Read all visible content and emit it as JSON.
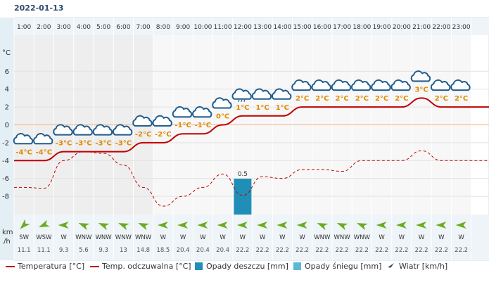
{
  "date": "2022-01-13",
  "colors": {
    "temp": "#c00000",
    "feels": "#c00000",
    "rain": "#1f8fb7",
    "snow": "#5bb8d6",
    "wind": "#6aab1f",
    "night_bg": "#eeeeee",
    "day_bg": "#ffffff"
  },
  "axis": {
    "temp_unit": "°C",
    "wind_unit_top": "km",
    "wind_unit_bottom": "/h",
    "y_ticks": [
      6,
      4,
      2,
      0,
      -2,
      -4,
      -6,
      -8
    ],
    "y_range": [
      -9.5,
      8
    ]
  },
  "legend": {
    "temp": "Temperatura [°C]",
    "feels": "Temp. odczuwalna [°C]",
    "rain": "Opady deszczu [mm]",
    "snow": "Opady śniegu [mm]",
    "wind": "Wiatr [km/h]"
  },
  "chart_data": {
    "type": "line",
    "x": [
      "1:00",
      "2:00",
      "3:00",
      "4:00",
      "5:00",
      "6:00",
      "7:00",
      "8:00",
      "9:00",
      "10:00",
      "11:00",
      "12:00",
      "13:00",
      "14:00",
      "15:00",
      "16:00",
      "17:00",
      "18:00",
      "19:00",
      "20:00",
      "21:00",
      "22:00",
      "23:00"
    ],
    "series": [
      {
        "name": "Temperatura [°C]",
        "values": [
          -4,
          -4,
          -3,
          -3,
          -3,
          -3,
          -2,
          -2,
          -1,
          -1,
          0,
          1,
          1,
          1,
          2,
          2,
          2,
          2,
          2,
          2,
          3,
          2,
          2
        ]
      },
      {
        "name": "Temp. odczuwalna [°C]",
        "values": [
          -7,
          -7.1,
          -4,
          -3,
          -3.2,
          -4.5,
          -7,
          -9.1,
          -8,
          -7,
          -5.5,
          -7.9,
          -5.8,
          -6,
          -5,
          -5,
          -5.2,
          -4,
          -4,
          -4,
          -2.9,
          -4,
          -4
        ]
      },
      {
        "name": "Opady deszczu [mm]",
        "values": [
          0,
          0,
          0,
          0,
          0,
          0,
          0,
          0,
          0,
          0,
          0,
          0.5,
          0,
          0,
          0,
          0,
          0,
          0,
          0,
          0,
          0,
          0,
          0
        ]
      }
    ],
    "temp_labels": [
      "-4°C",
      "-4°C",
      "-3°C",
      "-3°C",
      "-3°C",
      "-3°C",
      "-2°C",
      "-2°C",
      "-1°C",
      "-1°C",
      "0°C",
      "1°C",
      "1°C",
      "1°C",
      "2°C",
      "2°C",
      "2°C",
      "2°C",
      "2°C",
      "2°C",
      "3°C",
      "2°C",
      "2°C"
    ],
    "rain_labels": {
      "11": "0.5"
    },
    "wind_dir": [
      "SW",
      "WSW",
      "W",
      "WNW",
      "WNW",
      "WNW",
      "WNW",
      "W",
      "W",
      "W",
      "W",
      "W",
      "W",
      "W",
      "W",
      "WNW",
      "WNW",
      "WNW",
      "W",
      "W",
      "W",
      "W",
      "W"
    ],
    "wind_speed": [
      "11.1",
      "11.1",
      "9.3",
      "5.6",
      "9.3",
      "13",
      "14.8",
      "18.5",
      "20.4",
      "20.4",
      "20.4",
      "22.2",
      "22.2",
      "22.2",
      "22.2",
      "22.2",
      "22.2",
      "22.2",
      "22.2",
      "22.2",
      "22.2",
      "22.2",
      "22.2"
    ],
    "wind_deg": [
      225,
      247,
      270,
      292,
      292,
      292,
      292,
      270,
      270,
      270,
      270,
      270,
      270,
      270,
      270,
      292,
      292,
      292,
      270,
      270,
      270,
      270,
      270
    ],
    "icons": [
      "cloud",
      "cloud",
      "cloud",
      "cloud",
      "cloud",
      "cloud",
      "cloud",
      "cloud",
      "cloud",
      "cloud",
      "cloud",
      "cloud-rain",
      "cloud",
      "cloud",
      "cloud",
      "cloud",
      "cloud",
      "cloud",
      "cloud",
      "cloud",
      "cloud",
      "cloud",
      "cloud"
    ],
    "night_hours": [
      1,
      2,
      3,
      4,
      5,
      6,
      7
    ],
    "grid": true
  }
}
